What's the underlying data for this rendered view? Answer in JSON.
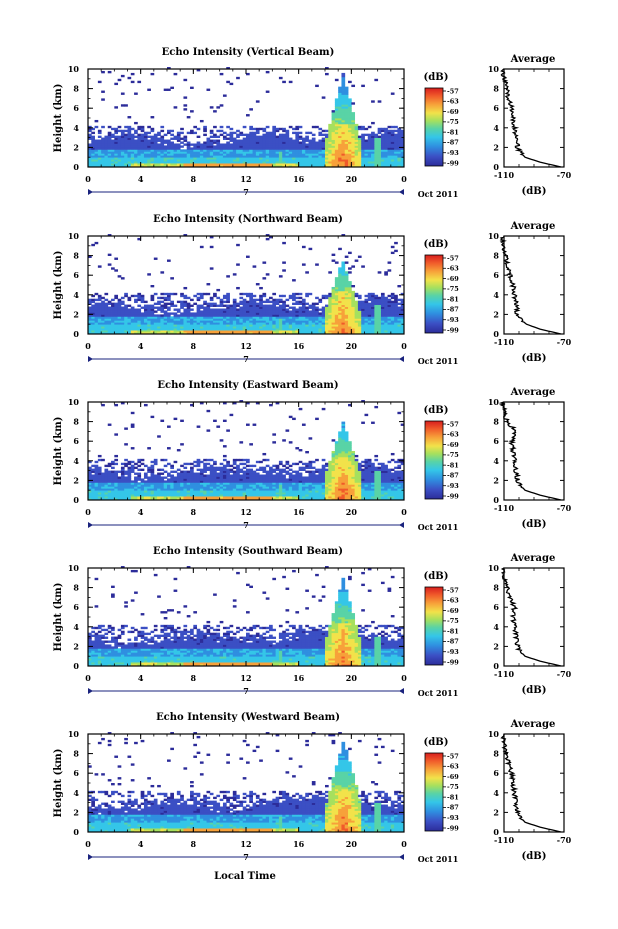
{
  "figure": {
    "xlabel_bottom": "Local Time",
    "date_label": "Oct 2011",
    "day_marker": "7",
    "colorbar_unit": "(dB)",
    "avg_title": "Average",
    "avg_xlabel": "(dB)",
    "colors": {
      "background": "#ffffff",
      "colormap": [
        "#2c2c9a",
        "#3b4fc4",
        "#2f8fe0",
        "#34c6e8",
        "#59d3a6",
        "#a6e05e",
        "#f2e24a",
        "#f7a13a",
        "#f05a2a",
        "#d81e1e"
      ]
    }
  },
  "chart_data": [
    {
      "type": "heatmap",
      "title": "Echo Intensity (Vertical Beam)",
      "ylabel": "Height (km)",
      "xlim": [
        0,
        24
      ],
      "ylim": [
        0,
        10
      ],
      "xticks": [
        "0",
        "4",
        "8",
        "12",
        "16",
        "20",
        "0"
      ],
      "yticks": [
        "0",
        "2",
        "4",
        "6",
        "8",
        "10"
      ],
      "colorbar_ticks": [
        "-57",
        "-63",
        "-69",
        "-75",
        "-81",
        "-87",
        "-93",
        "-99"
      ],
      "storm": {
        "start": 17.9,
        "end": 20.6,
        "top_km": 9.5
      },
      "average_profile": {
        "xlim": [
          -110,
          -70
        ],
        "xticks": [
          "-110",
          "-70"
        ],
        "height_km": [
          0,
          0.5,
          1,
          1.5,
          2,
          3,
          4,
          5,
          6,
          7,
          8,
          9,
          10
        ],
        "db": [
          -72,
          -86,
          -96,
          -99,
          -101,
          -102,
          -103,
          -104,
          -105,
          -107,
          -108,
          -110,
          -111
        ]
      }
    },
    {
      "type": "heatmap",
      "title": "Echo Intensity (Northward Beam)",
      "ylabel": "Height (km)",
      "xlim": [
        0,
        24
      ],
      "ylim": [
        0,
        10
      ],
      "xticks": [
        "0",
        "4",
        "8",
        "12",
        "16",
        "20",
        "0"
      ],
      "yticks": [
        "0",
        "2",
        "4",
        "6",
        "8",
        "10"
      ],
      "colorbar_ticks": [
        "-57",
        "-63",
        "-69",
        "-75",
        "-81",
        "-87",
        "-93",
        "-99"
      ],
      "storm": {
        "start": 17.9,
        "end": 20.5,
        "top_km": 7.5
      },
      "average_profile": {
        "xlim": [
          -110,
          -70
        ],
        "xticks": [
          "-110",
          "-70"
        ],
        "height_km": [
          0,
          0.5,
          1,
          1.5,
          2,
          3,
          4,
          5,
          6,
          7,
          8,
          9,
          10
        ],
        "db": [
          -72,
          -86,
          -95,
          -99,
          -101,
          -102,
          -103,
          -104,
          -106,
          -108,
          -109,
          -111,
          -111
        ]
      }
    },
    {
      "type": "heatmap",
      "title": "Echo Intensity (Eastward Beam)",
      "ylabel": "Height (km)",
      "xlim": [
        0,
        24
      ],
      "ylim": [
        0,
        10
      ],
      "xticks": [
        "0",
        "4",
        "8",
        "12",
        "16",
        "20",
        "0"
      ],
      "yticks": [
        "0",
        "2",
        "4",
        "6",
        "8",
        "10"
      ],
      "colorbar_ticks": [
        "-57",
        "-63",
        "-69",
        "-75",
        "-81",
        "-87",
        "-93",
        "-99"
      ],
      "storm": {
        "start": 17.9,
        "end": 20.6,
        "top_km": 8.0
      },
      "average_profile": {
        "xlim": [
          -110,
          -70
        ],
        "xticks": [
          "-110",
          "-70"
        ],
        "height_km": [
          0,
          0.5,
          1,
          1.5,
          2,
          3,
          4,
          5,
          6,
          7,
          8,
          9,
          10
        ],
        "db": [
          -72,
          -86,
          -96,
          -99,
          -101,
          -102,
          -103,
          -104,
          -105,
          -102,
          -108,
          -110,
          -111
        ]
      }
    },
    {
      "type": "heatmap",
      "title": "Echo Intensity (Southward Beam)",
      "ylabel": "Height (km)",
      "xlim": [
        0,
        24
      ],
      "ylim": [
        0,
        10
      ],
      "xticks": [
        "0",
        "4",
        "8",
        "12",
        "16",
        "20",
        "0"
      ],
      "yticks": [
        "0",
        "2",
        "4",
        "6",
        "8",
        "10"
      ],
      "colorbar_ticks": [
        "-57",
        "-63",
        "-69",
        "-75",
        "-81",
        "-87",
        "-93",
        "-99"
      ],
      "storm": {
        "start": 17.9,
        "end": 20.6,
        "top_km": 9.0
      },
      "average_profile": {
        "xlim": [
          -110,
          -70
        ],
        "xticks": [
          "-110",
          "-70"
        ],
        "height_km": [
          0,
          0.5,
          1,
          1.5,
          2,
          3,
          4,
          5,
          6,
          7,
          8,
          9,
          10
        ],
        "db": [
          -72,
          -86,
          -96,
          -99,
          -101,
          -102,
          -103,
          -104,
          -103,
          -106,
          -108,
          -110,
          -111
        ]
      }
    },
    {
      "type": "heatmap",
      "title": "Echo Intensity (Westward Beam)",
      "ylabel": "Height (km)",
      "xlim": [
        0,
        24
      ],
      "ylim": [
        0,
        10
      ],
      "xticks": [
        "0",
        "4",
        "8",
        "12",
        "16",
        "20",
        "0"
      ],
      "yticks": [
        "0",
        "2",
        "4",
        "6",
        "8",
        "10"
      ],
      "colorbar_ticks": [
        "-57",
        "-63",
        "-69",
        "-75",
        "-81",
        "-87",
        "-93",
        "-99"
      ],
      "storm": {
        "start": 17.9,
        "end": 20.7,
        "top_km": 9.5
      },
      "average_profile": {
        "xlim": [
          -110,
          -70
        ],
        "xticks": [
          "-110",
          "-70"
        ],
        "height_km": [
          0,
          0.5,
          1,
          1.5,
          2,
          3,
          4,
          5,
          6,
          7,
          8,
          9,
          10
        ],
        "db": [
          -72,
          -86,
          -96,
          -99,
          -101,
          -102,
          -103,
          -104,
          -105,
          -107,
          -108,
          -110,
          -111
        ]
      }
    }
  ]
}
